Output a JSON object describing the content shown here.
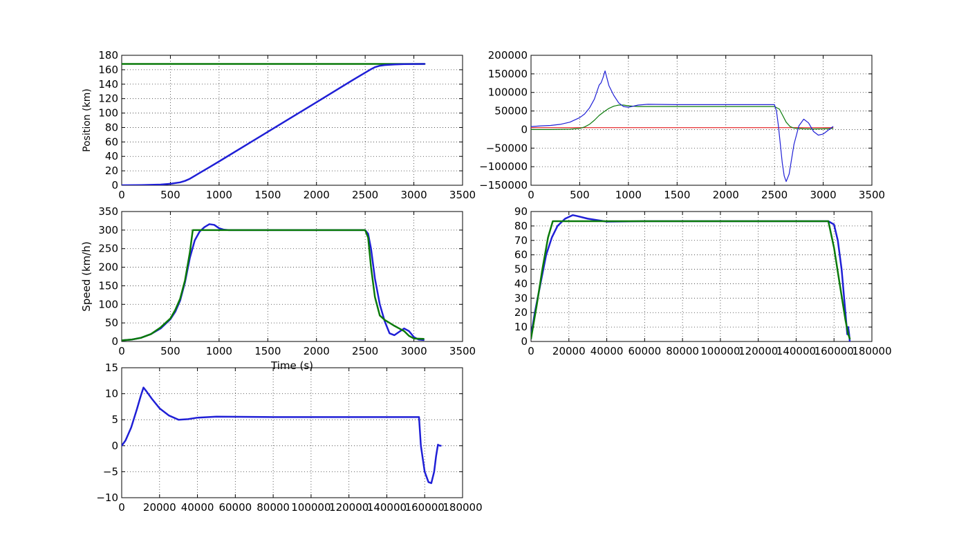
{
  "chart_data": [
    {
      "type": "line",
      "id": "position",
      "xlabel": "",
      "ylabel": "Position (km)",
      "xlim": [
        0,
        3500
      ],
      "ylim": [
        0,
        180
      ],
      "xticks": [
        0,
        500,
        1000,
        1500,
        2000,
        2500,
        3000,
        3500
      ],
      "yticks": [
        0,
        20,
        40,
        60,
        80,
        100,
        120,
        140,
        160,
        180
      ],
      "xtick_labels": [
        "0",
        "500",
        "1000",
        "1500",
        "2000",
        "2500",
        "3000",
        "3500"
      ],
      "ytick_labels": [
        "0",
        "20",
        "40",
        "60",
        "80",
        "100",
        "120",
        "140",
        "160",
        "180"
      ],
      "grid": true,
      "series": [
        {
          "color": "#0a7a0a",
          "width": 2.5,
          "x": [
            0,
            3110
          ],
          "y": [
            168,
            168
          ]
        },
        {
          "color": "#1f1fd6",
          "width": 2.5,
          "x": [
            0,
            200,
            400,
            500,
            600,
            650,
            700,
            750,
            800,
            900,
            1000,
            1500,
            2000,
            2400,
            2550,
            2600,
            2650,
            2700,
            2800,
            2900,
            3000,
            3110
          ],
          "y": [
            0,
            0.3,
            1,
            2,
            4,
            6,
            9,
            13,
            17,
            25,
            33,
            74,
            115,
            148,
            160,
            163.5,
            165.5,
            166.5,
            167.3,
            167.7,
            167.9,
            168
          ]
        }
      ]
    },
    {
      "type": "line",
      "id": "top-right",
      "xlabel": "",
      "ylabel": "",
      "xlim": [
        0,
        3500
      ],
      "ylim": [
        -150000,
        200000
      ],
      "xticks": [
        0,
        500,
        1000,
        1500,
        2000,
        2500,
        3000,
        3500
      ],
      "yticks": [
        -150000,
        -100000,
        -50000,
        0,
        50000,
        100000,
        150000,
        200000
      ],
      "xtick_labels": [
        "0",
        "500",
        "1000",
        "1500",
        "2000",
        "2500",
        "3000",
        "3500"
      ],
      "ytick_labels": [
        "−150000",
        "−100000",
        "−50000",
        "0",
        "50000",
        "100000",
        "150000",
        "200000"
      ],
      "grid": true,
      "series": [
        {
          "color": "#e31a1c",
          "width": 1.2,
          "x": [
            0,
            3100
          ],
          "y": [
            5000,
            5000
          ]
        },
        {
          "color": "#0a7a0a",
          "width": 1.2,
          "x": [
            0,
            200,
            400,
            500,
            550,
            600,
            650,
            700,
            750,
            800,
            850,
            900,
            950,
            1000,
            1100,
            1500,
            2000,
            2500,
            2550,
            2580,
            2620,
            2660,
            2700,
            2800,
            2900,
            3000,
            3100
          ],
          "y": [
            0,
            0,
            1000,
            3000,
            7000,
            14000,
            25000,
            38000,
            48000,
            57000,
            63000,
            66000,
            66000,
            64000,
            62000,
            62000,
            62000,
            62000,
            55000,
            40000,
            20000,
            8000,
            4000,
            2000,
            1500,
            2000,
            3000
          ]
        },
        {
          "color": "#1f1fd6",
          "width": 1.2,
          "x": [
            0,
            100,
            200,
            300,
            400,
            500,
            550,
            600,
            650,
            700,
            720,
            740,
            760,
            780,
            800,
            850,
            900,
            950,
            1000,
            1100,
            1200,
            1500,
            2000,
            2500,
            2520,
            2540,
            2560,
            2580,
            2600,
            2620,
            2650,
            2700,
            2750,
            2800,
            2850,
            2900,
            2950,
            3000,
            3050,
            3100
          ],
          "y": [
            8000,
            10000,
            11000,
            14000,
            20000,
            32000,
            42000,
            58000,
            82000,
            120000,
            126000,
            140000,
            158000,
            138000,
            118000,
            92000,
            72000,
            62000,
            60000,
            66000,
            68000,
            67000,
            67000,
            67000,
            50000,
            10000,
            -40000,
            -90000,
            -125000,
            -140000,
            -120000,
            -40000,
            10000,
            28000,
            18000,
            -5000,
            -15000,
            -12000,
            -2000,
            8000
          ]
        }
      ]
    },
    {
      "type": "line",
      "id": "speed",
      "xlabel": "Time (s)",
      "ylabel": "Speed (km/h)",
      "xlim": [
        0,
        3500
      ],
      "ylim": [
        0,
        350
      ],
      "xticks": [
        0,
        500,
        1000,
        1500,
        2000,
        2500,
        3000,
        3500
      ],
      "yticks": [
        0,
        50,
        100,
        150,
        200,
        250,
        300,
        350
      ],
      "xtick_labels": [
        "0",
        "500",
        "1000",
        "1500",
        "2000",
        "2500",
        "3000",
        "3500"
      ],
      "ytick_labels": [
        "0",
        "50",
        "100",
        "150",
        "200",
        "250",
        "300",
        "350"
      ],
      "grid": true,
      "series": [
        {
          "color": "#1f1fd6",
          "width": 2.5,
          "x": [
            0,
            100,
            200,
            300,
            400,
            500,
            550,
            600,
            650,
            700,
            750,
            800,
            850,
            900,
            950,
            1000,
            1050,
            1100,
            1200,
            1500,
            2000,
            2500,
            2530,
            2560,
            2600,
            2650,
            2700,
            2750,
            2800,
            2850,
            2900,
            2950,
            3000,
            3050,
            3100
          ],
          "y": [
            3,
            5,
            10,
            20,
            35,
            60,
            80,
            110,
            160,
            225,
            272,
            296,
            308,
            316,
            314,
            305,
            301,
            300,
            300,
            300,
            300,
            300,
            290,
            250,
            170,
            100,
            55,
            22,
            17,
            26,
            35,
            28,
            12,
            5,
            4
          ]
        },
        {
          "color": "#0a7a0a",
          "width": 2.5,
          "x": [
            0,
            100,
            200,
            300,
            400,
            500,
            550,
            600,
            650,
            700,
            730,
            760,
            2500,
            2530,
            2560,
            2600,
            2650,
            2700,
            2750,
            2800,
            2850,
            2900,
            2950,
            3000,
            3100
          ],
          "y": [
            3,
            5,
            10,
            20,
            38,
            62,
            85,
            115,
            165,
            240,
            300,
            300,
            300,
            280,
            200,
            120,
            70,
            58,
            50,
            42,
            35,
            28,
            15,
            8,
            7
          ]
        }
      ]
    },
    {
      "type": "line",
      "id": "mid-right",
      "xlabel": "",
      "ylabel": "",
      "xlim": [
        0,
        180000
      ],
      "ylim": [
        0,
        90
      ],
      "xticks": [
        0,
        20000,
        40000,
        60000,
        80000,
        100000,
        120000,
        140000,
        160000,
        180000
      ],
      "yticks": [
        0,
        10,
        20,
        30,
        40,
        50,
        60,
        70,
        80,
        90
      ],
      "xtick_labels": [
        "0",
        "20000",
        "40000",
        "60000",
        "80000",
        "100000",
        "120000",
        "140000",
        "160000",
        "180000"
      ],
      "ytick_labels": [
        "0",
        "10",
        "20",
        "30",
        "40",
        "50",
        "60",
        "70",
        "80",
        "90"
      ],
      "grid": true,
      "series": [
        {
          "color": "#1f1fd6",
          "width": 2.5,
          "x": [
            0,
            500,
            2000,
            5000,
            8000,
            11000,
            14000,
            18000,
            22000,
            24000,
            30000,
            40000,
            60000,
            100000,
            157000,
            160000,
            162000,
            164000,
            166000,
            167000,
            167500,
            168000,
            168300
          ],
          "y": [
            2,
            8,
            20,
            40,
            60,
            72,
            80,
            85,
            87.5,
            87,
            85,
            83,
            83.3,
            83.3,
            83.3,
            81,
            70,
            50,
            20,
            5,
            10,
            5,
            0
          ]
        },
        {
          "color": "#0a7a0a",
          "width": 2.5,
          "x": [
            0,
            3000,
            6000,
            9000,
            11500,
            157000,
            160000,
            163000,
            166000,
            167500,
            168300
          ],
          "y": [
            2,
            25,
            50,
            72,
            83.3,
            83.3,
            65,
            40,
            15,
            5,
            2
          ]
        }
      ]
    },
    {
      "type": "line",
      "id": "bottom",
      "xlabel": "",
      "ylabel": "",
      "xlim": [
        0,
        180000
      ],
      "ylim": [
        -10,
        15
      ],
      "xticks": [
        0,
        20000,
        40000,
        60000,
        80000,
        100000,
        120000,
        140000,
        160000,
        180000
      ],
      "yticks": [
        -10,
        -5,
        0,
        5,
        10,
        15
      ],
      "xtick_labels": [
        "0",
        "20000",
        "40000",
        "60000",
        "80000",
        "100000",
        "120000",
        "140000",
        "160000",
        "180000"
      ],
      "ytick_labels": [
        "−10",
        "−5",
        "0",
        "5",
        "10",
        "15"
      ],
      "grid": true,
      "series": [
        {
          "color": "#1f1fd6",
          "width": 2.5,
          "x": [
            0,
            2000,
            5000,
            8000,
            10000,
            11500,
            13000,
            16000,
            20000,
            25000,
            30000,
            35000,
            40000,
            50000,
            80000,
            157000,
            158000,
            160000,
            162000,
            163500,
            165000,
            166000,
            167000,
            168000,
            168500
          ],
          "y": [
            0,
            1,
            3.5,
            7,
            9.5,
            11.2,
            10.5,
            9,
            7.2,
            5.8,
            5,
            5.1,
            5.4,
            5.6,
            5.5,
            5.5,
            0,
            -5,
            -7,
            -7.2,
            -5,
            -2,
            0.2,
            0,
            0
          ]
        }
      ]
    }
  ]
}
